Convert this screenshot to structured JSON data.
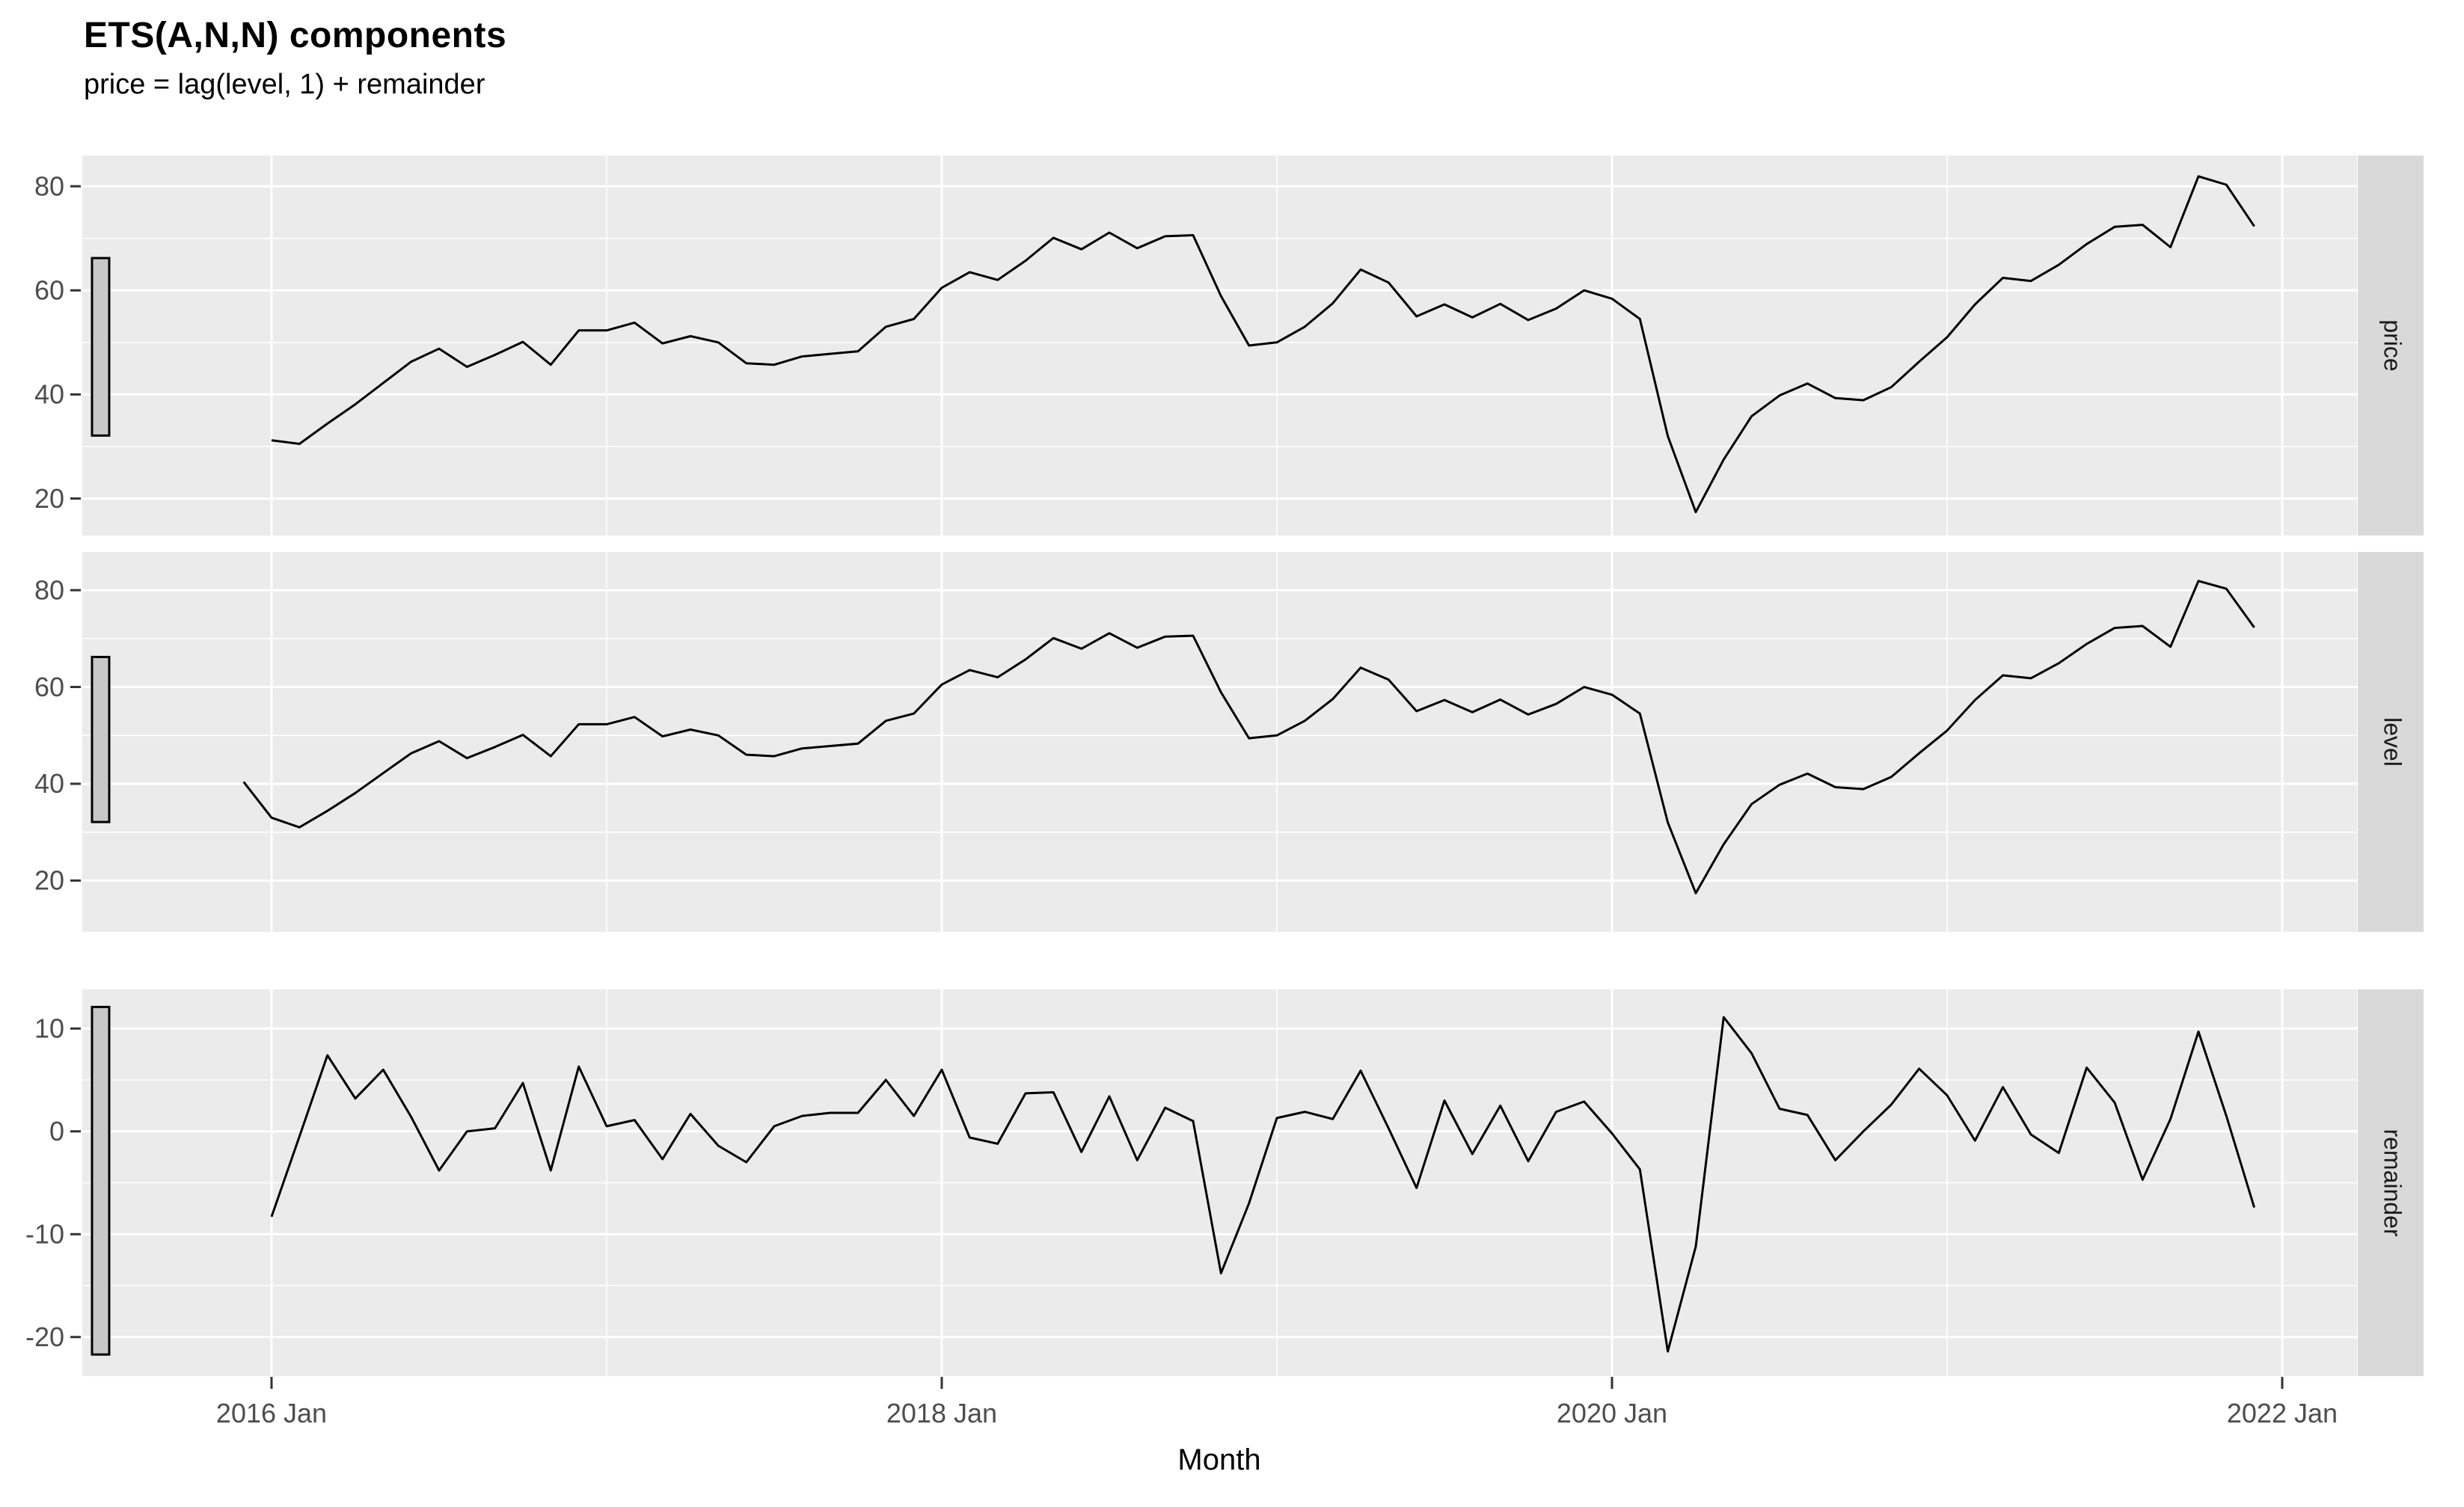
{
  "title": "ETS(A,N,N) components",
  "subtitle": "price = lag(level, 1) + remainder",
  "xlabel": "Month",
  "colors": {
    "background": "#ffffff",
    "panel_background": "#ebebeb",
    "strip_background": "#d9d9d9",
    "gridline": "#ffffff",
    "line": "#000000",
    "scale_bar_fill": "#c8c8c8",
    "scale_bar_border": "#000000",
    "axis_text": "#4d4d4d",
    "tick_mark": "#333333",
    "strip_text": "#1a1a1a"
  },
  "chart_data": {
    "type": "line",
    "title": "ETS(A,N,N) components",
    "subtitle": "price = lag(level, 1) + remainder",
    "xlabel": "Month",
    "x_unit": "monthly",
    "x_start": "2015 Dec",
    "x_end": "2021 Dec",
    "x_tick_labels": [
      "2016 Jan",
      "2018 Jan",
      "2020 Jan",
      "2022 Jan"
    ],
    "grid": true,
    "legend": "none",
    "facet_strips_right": [
      "price",
      "level",
      "remainder"
    ],
    "panels": [
      {
        "name": "price",
        "strip_label": "price",
        "y_ticks": [
          20,
          40,
          60,
          80
        ],
        "ylim": [
          12.9,
          85.9
        ],
        "scale_bar_range": [
          32.1,
          66.2
        ],
        "start": "2016 Jan",
        "values": [
          31.2,
          30.5,
          34.4,
          38.1,
          42.2,
          46.3,
          48.8,
          45.3,
          47.6,
          50.1,
          45.7,
          52.3,
          52.3,
          53.8,
          49.8,
          51.2,
          50.0,
          46.0,
          45.7,
          47.3,
          47.8,
          48.3,
          53.0,
          54.5,
          60.5,
          63.5,
          62.0,
          65.7,
          70.1,
          67.9,
          71.1,
          68.1,
          70.4,
          70.6,
          58.9,
          49.4,
          50.0,
          53.0,
          57.5,
          64.0,
          61.5,
          55.0,
          57.3,
          54.8,
          57.4,
          54.3,
          56.5,
          60.0,
          58.4,
          54.5,
          32.0,
          17.4,
          27.5,
          35.8,
          39.8,
          42.1,
          39.3,
          38.9,
          41.4,
          46.3,
          51.0,
          57.3,
          62.4,
          61.8,
          64.9,
          68.9,
          72.2,
          72.6,
          68.3,
          81.9,
          80.3,
          72.3
        ]
      },
      {
        "name": "level",
        "strip_label": "level",
        "y_ticks": [
          20,
          40,
          60,
          80
        ],
        "ylim": [
          9.4,
          87.9
        ],
        "scale_bar_range": [
          32.1,
          66.2
        ],
        "start": "2015 Dec",
        "values": [
          40.4,
          33.0,
          31.0,
          34.4,
          38.1,
          42.2,
          46.3,
          48.8,
          45.3,
          47.6,
          50.1,
          45.7,
          52.3,
          52.3,
          53.8,
          49.8,
          51.2,
          50.0,
          46.0,
          45.7,
          47.3,
          47.8,
          48.3,
          53.0,
          54.5,
          60.5,
          63.5,
          62.0,
          65.7,
          70.1,
          67.9,
          71.1,
          68.1,
          70.4,
          70.6,
          58.9,
          49.4,
          50.0,
          53.0,
          57.5,
          64.0,
          61.5,
          55.0,
          57.3,
          54.8,
          57.4,
          54.3,
          56.5,
          60.0,
          58.4,
          54.5,
          32.0,
          17.4,
          27.5,
          35.8,
          39.8,
          42.1,
          39.3,
          38.9,
          41.4,
          46.3,
          51.0,
          57.3,
          62.4,
          61.8,
          64.9,
          68.9,
          72.2,
          72.6,
          68.3,
          81.9,
          80.3,
          72.3
        ]
      },
      {
        "name": "remainder",
        "strip_label": "remainder",
        "y_ticks": [
          -20,
          -10,
          0,
          10
        ],
        "ylim": [
          -23.8,
          13.8
        ],
        "scale_bar_range": [
          -21.7,
          12.1
        ],
        "start": "2016 Jan",
        "values": [
          -8.3,
          -0.5,
          7.4,
          3.2,
          6.0,
          1.4,
          -3.8,
          0.0,
          0.3,
          4.7,
          -3.8,
          6.3,
          0.5,
          1.1,
          -2.7,
          1.7,
          -1.4,
          -3.0,
          0.5,
          1.5,
          1.8,
          1.8,
          5.0,
          1.5,
          6.0,
          -0.6,
          -1.2,
          3.7,
          3.8,
          -2.0,
          3.4,
          -2.8,
          2.3,
          1.0,
          -13.8,
          -7.0,
          1.3,
          1.9,
          1.2,
          5.9,
          0.3,
          -5.5,
          3.0,
          -2.2,
          2.5,
          -2.9,
          1.9,
          2.9,
          -0.2,
          -3.7,
          -21.4,
          -11.2,
          11.1,
          7.6,
          2.2,
          1.6,
          -2.8,
          0.0,
          2.6,
          6.1,
          3.5,
          -0.9,
          4.3,
          -0.3,
          -2.1,
          6.2,
          2.8,
          -4.7,
          1.2,
          9.7,
          1.5,
          -7.4
        ]
      }
    ]
  }
}
